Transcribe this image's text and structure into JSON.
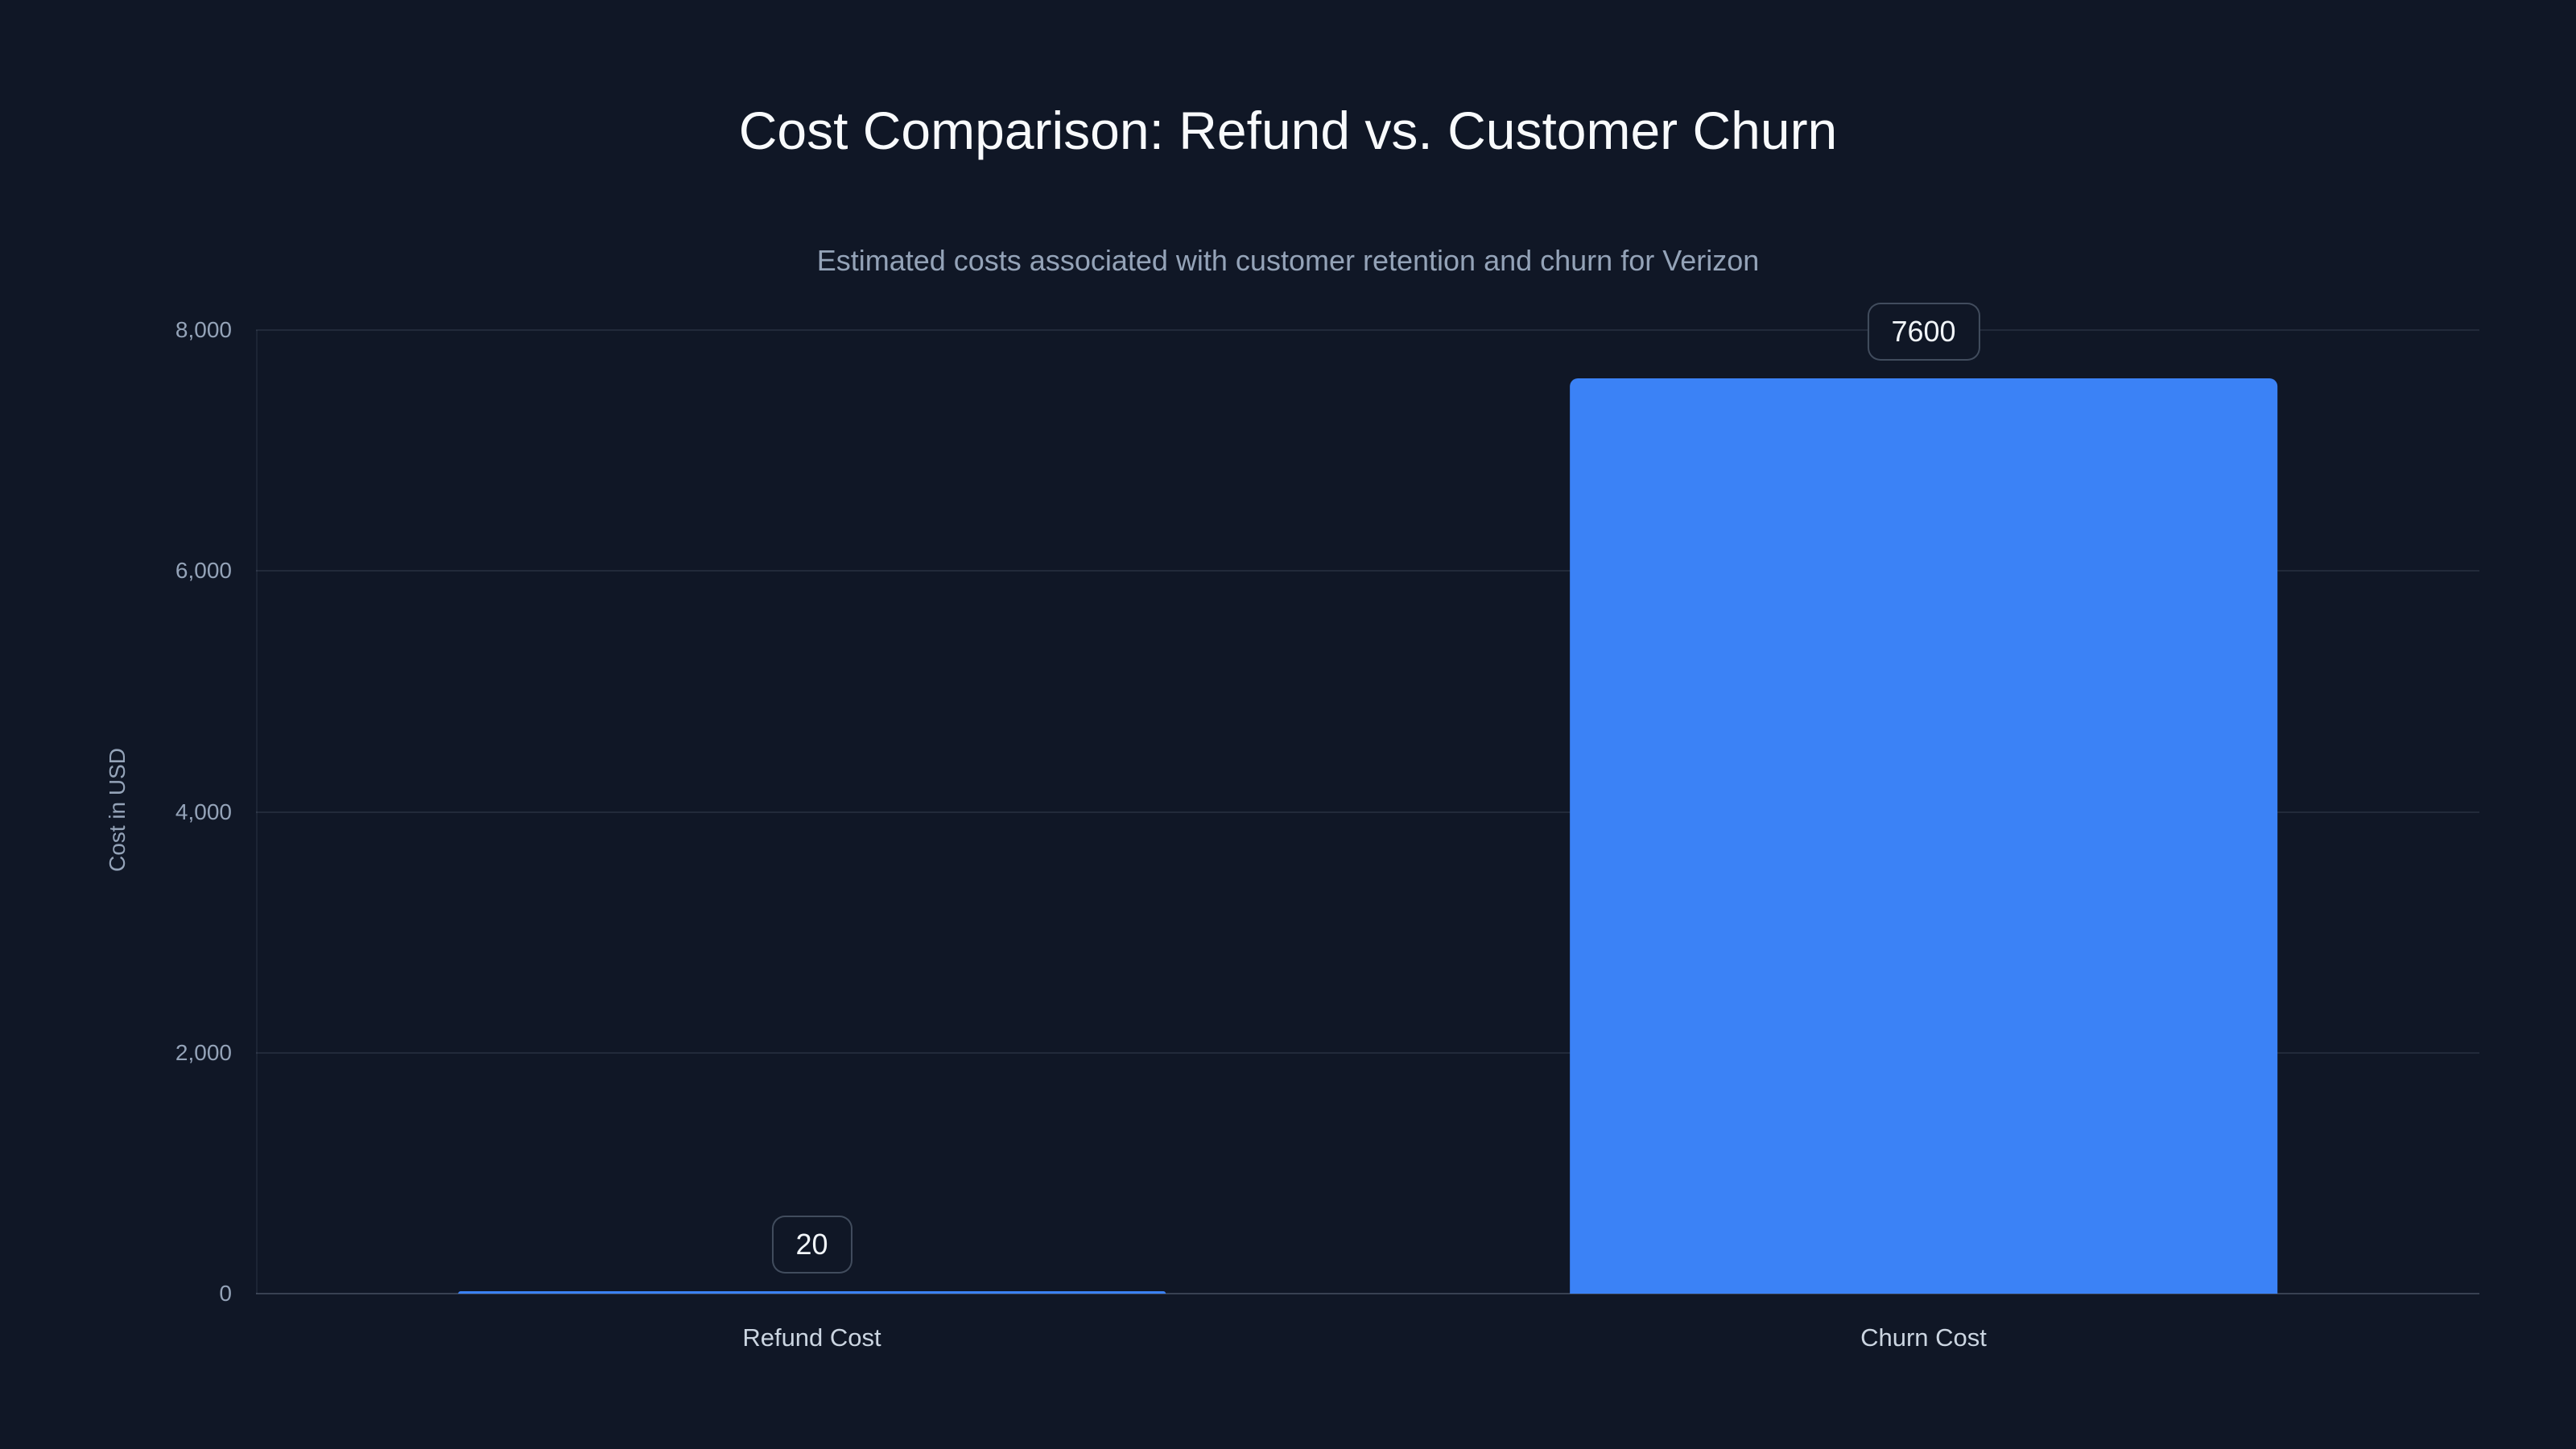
{
  "page": {
    "background": "#101726"
  },
  "chart_data": {
    "type": "bar",
    "title": "Cost Comparison: Refund vs. Customer Churn",
    "subtitle": "Estimated costs associated with customer retention and churn for Verizon",
    "xlabel": "",
    "ylabel": "Cost in USD",
    "categories": [
      "Refund Cost",
      "Churn Cost"
    ],
    "values": [
      20,
      7600
    ],
    "value_labels": [
      "20",
      "7600"
    ],
    "ylim": [
      0,
      8000
    ],
    "yticks": [
      0,
      2000,
      4000,
      6000,
      8000
    ],
    "ytick_labels": [
      "0",
      "2,000",
      "4,000",
      "6,000",
      "8,000"
    ],
    "grid": "horizontal",
    "legend": "none",
    "bar_width_fraction": 0.637,
    "colors": {
      "bar": "#3b82f6",
      "background": "#101726",
      "title_text": "#f8fafc",
      "subtitle_text": "#94a3b8",
      "tick_text": "#94a3b8",
      "category_text": "#cbd5e1",
      "gridline": "rgba(148,163,184,0.14)",
      "gridline_zero": "rgba(148,163,184,0.30)",
      "axis_line": "rgba(148,163,184,0.10)",
      "badge_border": "rgba(148,163,184,0.38)",
      "badge_text": "#f1f5f9"
    }
  }
}
